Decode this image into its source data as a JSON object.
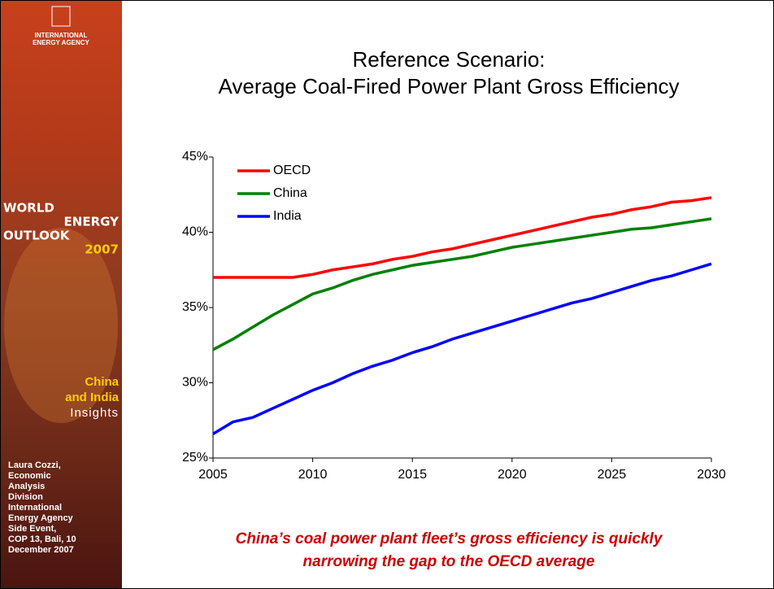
{
  "sidebar": {
    "agency": [
      "INTERNATIONAL",
      "ENERGY AGENCY"
    ],
    "weo": [
      "WORLD",
      "ENERGY",
      "OUTLOOK",
      "2007"
    ],
    "insights": [
      "China",
      "and India",
      "Insights"
    ],
    "author": [
      "Laura Cozzi,",
      "Economic",
      "Analysis",
      "Division",
      "International",
      "Energy Agency",
      "Side Event,",
      "COP 13, Bali, 10",
      "December 2007"
    ]
  },
  "chart_data": {
    "type": "line",
    "title": [
      "Reference Scenario:",
      "Average Coal-Fired Power Plant Gross Efficiency"
    ],
    "x": [
      2005,
      2006,
      2007,
      2008,
      2009,
      2010,
      2011,
      2012,
      2013,
      2014,
      2015,
      2016,
      2017,
      2018,
      2019,
      2020,
      2021,
      2022,
      2023,
      2024,
      2025,
      2026,
      2027,
      2028,
      2029,
      2030
    ],
    "xlim": [
      2005,
      2030
    ],
    "xticks": [
      2005,
      2010,
      2015,
      2020,
      2025,
      2030
    ],
    "ylim": [
      25,
      45
    ],
    "yticks": [
      {
        "value": 25,
        "label": "25%"
      },
      {
        "value": 30,
        "label": "30%"
      },
      {
        "value": 35,
        "label": "35%"
      },
      {
        "value": 40,
        "label": "40%"
      },
      {
        "value": 45,
        "label": "45%"
      }
    ],
    "series": [
      {
        "name": "OECD",
        "color": "#ff0000",
        "values": [
          37,
          37,
          37,
          37,
          37,
          37.2,
          37.5,
          37.7,
          37.9,
          38.2,
          38.4,
          38.7,
          38.9,
          39.2,
          39.5,
          39.8,
          40.1,
          40.4,
          40.7,
          41.0,
          41.2,
          41.5,
          41.7,
          42.0,
          42.1,
          42.3
        ]
      },
      {
        "name": "China",
        "color": "#008000",
        "values": [
          32.2,
          32.9,
          33.7,
          34.5,
          35.2,
          35.9,
          36.3,
          36.8,
          37.2,
          37.5,
          37.8,
          38.0,
          38.2,
          38.4,
          38.7,
          39.0,
          39.2,
          39.4,
          39.6,
          39.8,
          40.0,
          40.2,
          40.3,
          40.5,
          40.7,
          40.9
        ]
      },
      {
        "name": "India",
        "color": "#0000ff",
        "values": [
          26.6,
          27.4,
          27.7,
          28.3,
          28.9,
          29.5,
          30.0,
          30.6,
          31.1,
          31.5,
          32.0,
          32.4,
          32.9,
          33.3,
          33.7,
          34.1,
          34.5,
          34.9,
          35.3,
          35.6,
          36.0,
          36.4,
          36.8,
          37.1,
          37.5,
          37.9
        ]
      }
    ]
  },
  "caption": [
    "China’s coal power plant fleet’s gross efficiency is quickly",
    "narrowing the gap to the OECD average"
  ]
}
